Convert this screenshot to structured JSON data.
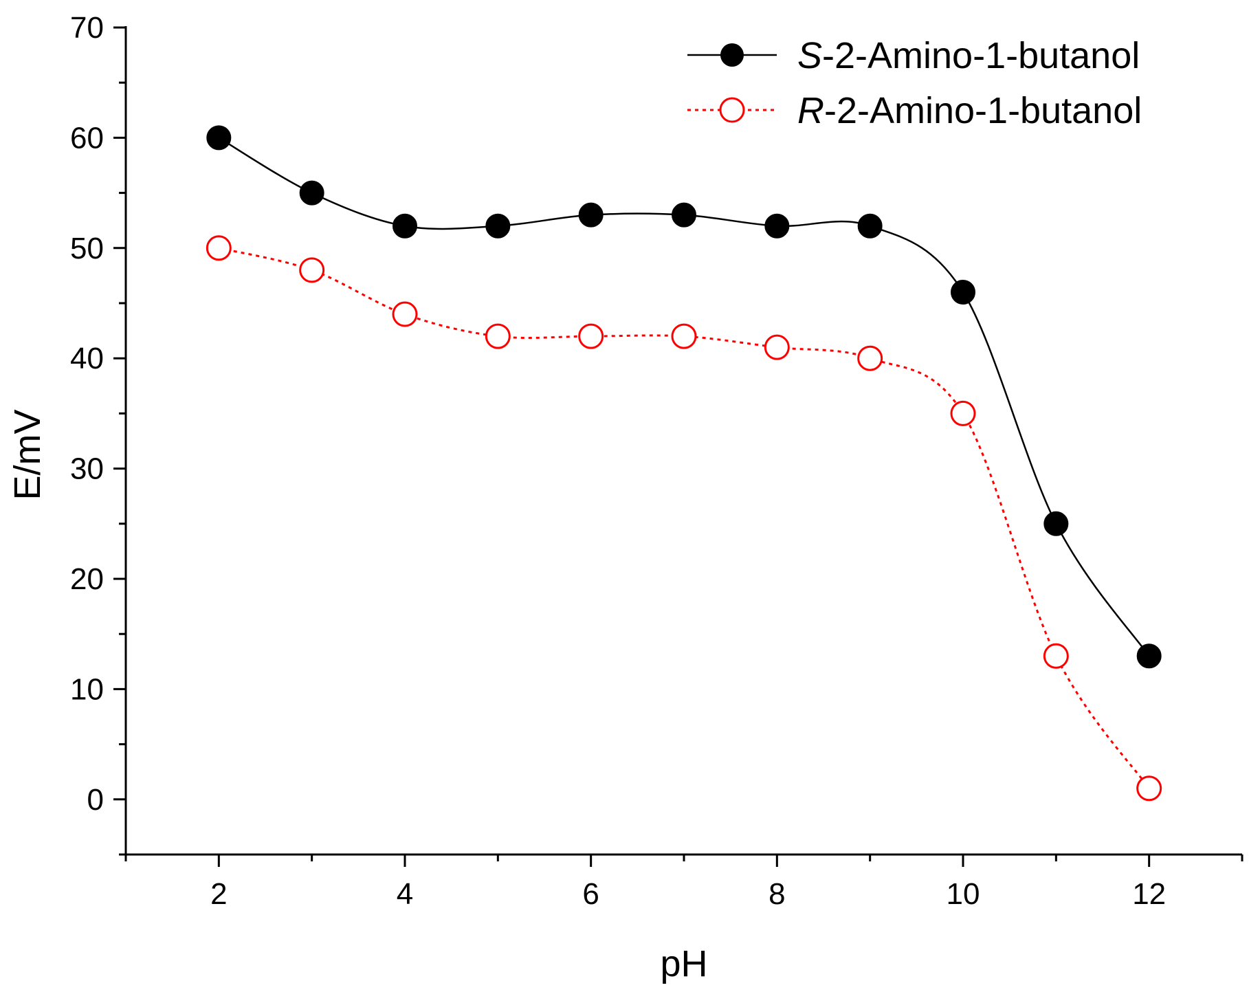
{
  "chart_data": {
    "type": "line",
    "title": "",
    "xlabel": "pH",
    "ylabel": "E/mV",
    "xlim": [
      1,
      13
    ],
    "ylim": [
      -5,
      70
    ],
    "xticks": [
      2,
      4,
      6,
      8,
      10,
      12
    ],
    "yticks": [
      0,
      10,
      20,
      30,
      40,
      50,
      60,
      70
    ],
    "xtick_labels": [
      "2",
      "4",
      "6",
      "8",
      "10",
      "12"
    ],
    "ytick_labels": [
      "0",
      "10",
      "20",
      "30",
      "40",
      "50",
      "60",
      "70"
    ],
    "grid": false,
    "legend_position": "top-right",
    "x": [
      2,
      3,
      4,
      5,
      6,
      7,
      8,
      9,
      10,
      11,
      12
    ],
    "series": [
      {
        "name": "S-2-Amino-1-butanol",
        "name_prefix": "S",
        "name_rest": "-2-Amino-1-butanol",
        "color": "#000000",
        "marker": "filled-circle",
        "line_style": "solid",
        "values": [
          60,
          55,
          52,
          52,
          53,
          53,
          52,
          52,
          46,
          25,
          13
        ]
      },
      {
        "name": "R-2-Amino-1-butanol",
        "name_prefix": "R",
        "name_rest": "-2-Amino-1-butanol",
        "color": "#ff0000",
        "marker": "open-circle",
        "line_style": "dotted",
        "values": [
          50,
          48,
          44,
          42,
          42,
          42,
          41,
          40,
          35,
          13,
          1
        ]
      }
    ]
  }
}
